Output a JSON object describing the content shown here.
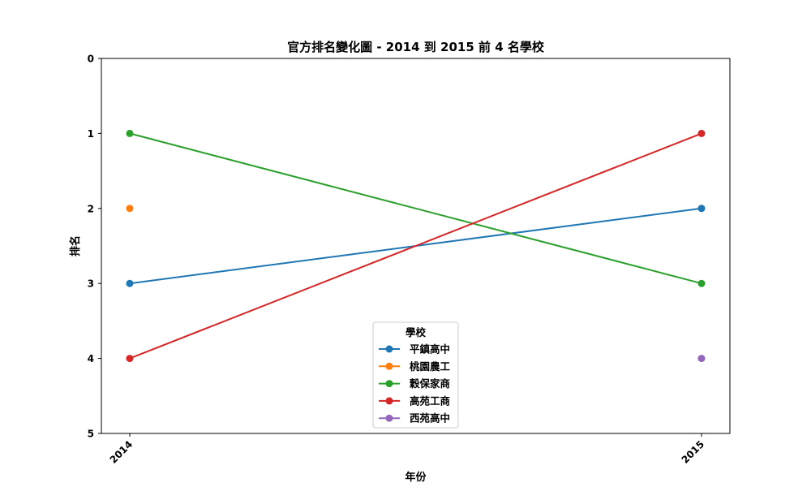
{
  "chart_data": {
    "type": "line",
    "title": "官方排名變化圖 - 2014 到 2015 前 4 名學校",
    "xlabel": "年份",
    "ylabel": "排名",
    "x": [
      "2014",
      "2015"
    ],
    "ylim": [
      0,
      5
    ],
    "y_inverted": true,
    "yticks": [
      "0",
      "1",
      "2",
      "3",
      "4",
      "5"
    ],
    "grid": false,
    "legend": {
      "title": "學校",
      "placement": "lower-center"
    },
    "series": [
      {
        "name": "平鎮高中",
        "color": "#1f77b4",
        "values": [
          3,
          2
        ]
      },
      {
        "name": "桃園農工",
        "color": "#ff7f0e",
        "values": [
          2,
          null
        ]
      },
      {
        "name": "穀保家商",
        "color": "#2ca02c",
        "values": [
          1,
          3
        ]
      },
      {
        "name": "高苑工商",
        "color": "#d62728",
        "values": [
          4,
          1
        ]
      },
      {
        "name": "西苑高中",
        "color": "#9467bd",
        "values": [
          null,
          4
        ]
      }
    ]
  }
}
